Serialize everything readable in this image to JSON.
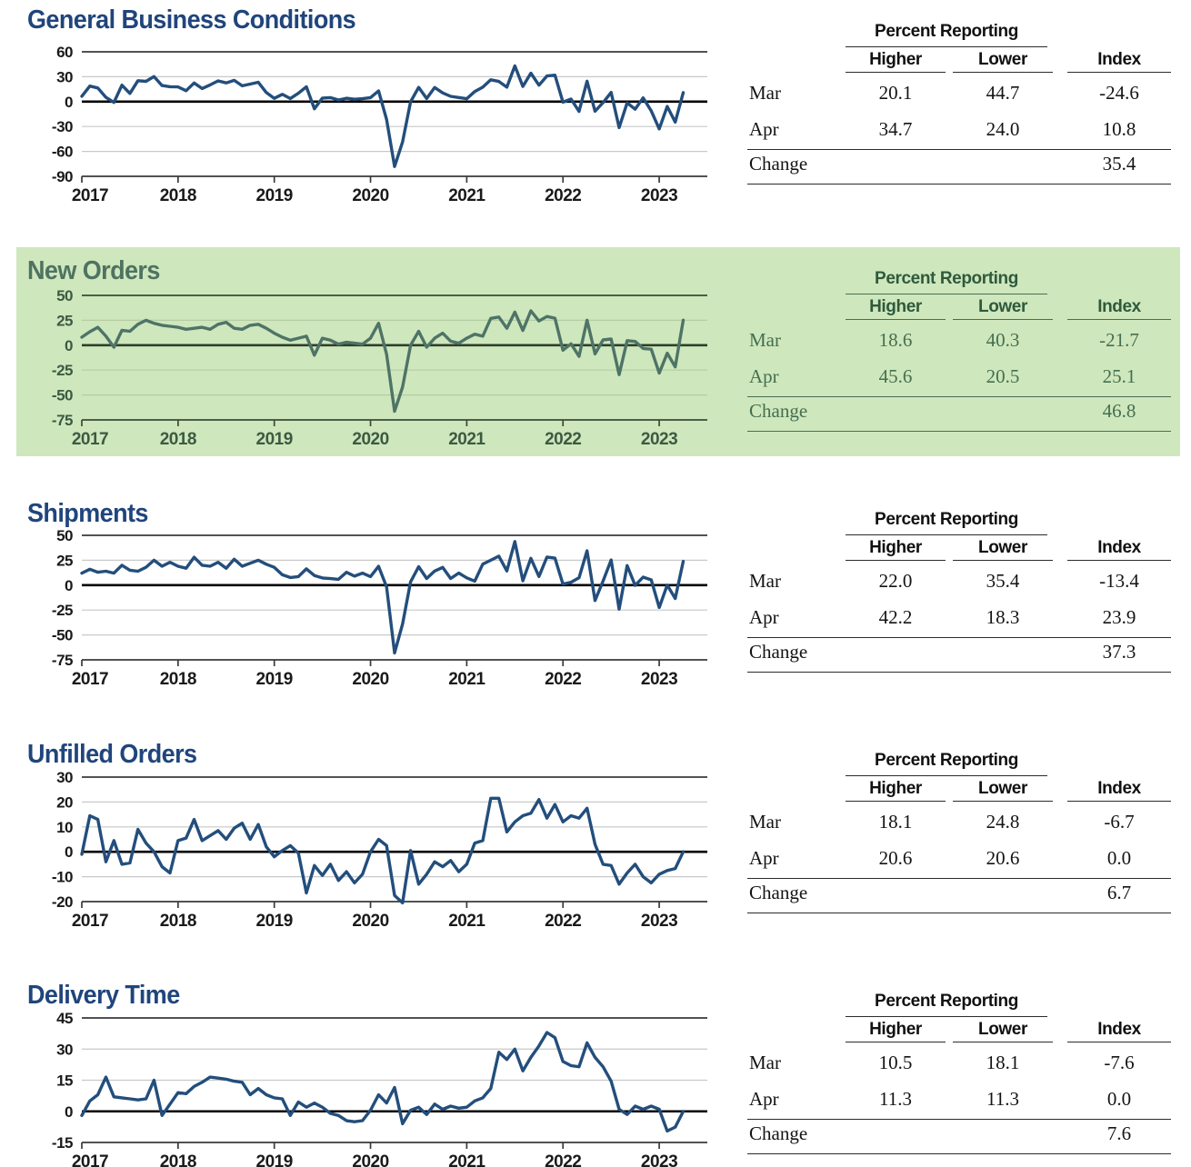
{
  "table_labels": {
    "group": "Percent Reporting",
    "higher": "Higher",
    "lower": "Lower",
    "index": "Index",
    "mar": "Mar",
    "apr": "Apr",
    "change": "Change"
  },
  "sections": [
    {
      "title": "General Business Conditions",
      "theme": "blue",
      "rows": {
        "mar": [
          "20.1",
          "44.7",
          "-24.6"
        ],
        "apr": [
          "34.7",
          "24.0",
          "10.8"
        ],
        "change": "35.4"
      }
    },
    {
      "title": "New Orders",
      "theme": "green",
      "rows": {
        "mar": [
          "18.6",
          "40.3",
          "-21.7"
        ],
        "apr": [
          "45.6",
          "20.5",
          "25.1"
        ],
        "change": "46.8"
      }
    },
    {
      "title": "Shipments",
      "theme": "blue",
      "rows": {
        "mar": [
          "22.0",
          "35.4",
          "-13.4"
        ],
        "apr": [
          "42.2",
          "18.3",
          "23.9"
        ],
        "change": "37.3"
      }
    },
    {
      "title": "Unfilled Orders",
      "theme": "blue",
      "rows": {
        "mar": [
          "18.1",
          "24.8",
          "-6.7"
        ],
        "apr": [
          "20.6",
          "20.6",
          "0.0"
        ],
        "change": "6.7"
      }
    },
    {
      "title": "Delivery Time",
      "theme": "blue",
      "rows": {
        "mar": [
          "10.5",
          "18.1",
          "-7.6"
        ],
        "apr": [
          "11.3",
          "11.3",
          "0.0"
        ],
        "change": "7.6"
      }
    }
  ],
  "themes": {
    "blue": {
      "line": "#234e7c",
      "strong": "#3a3a3a",
      "grid": "#c9c9c9",
      "zero": "#000000",
      "text": "#1a1a1a"
    },
    "green": {
      "line": "#4e7467",
      "strong": "#3c4b37",
      "grid": "#b6cda4",
      "zero": "#2f3e2c",
      "text": "#3c5a42"
    }
  },
  "highlight_band_color": "#cfe7bd",
  "chart_data": [
    {
      "id": 0,
      "type": "line",
      "title": "General Business Conditions",
      "theme": "blue",
      "x_axis_start": 2017,
      "x_axis_end": 2023.5,
      "x_monthly_start": "2017-01",
      "ylim": [
        -90,
        60
      ],
      "yticks": [
        60,
        30,
        0,
        -30,
        -60,
        -90
      ],
      "xticks": [
        2017,
        2018,
        2019,
        2020,
        2021,
        2022,
        2023
      ],
      "values": [
        6.5,
        18.7,
        16.4,
        5.2,
        -1.0,
        19.8,
        9.8,
        25.2,
        24.4,
        30.2,
        19.4,
        18.0,
        17.7,
        13.1,
        22.5,
        15.8,
        20.1,
        25.0,
        22.6,
        25.6,
        19.0,
        21.1,
        23.3,
        10.9,
        3.9,
        8.8,
        3.7,
        10.1,
        17.8,
        -8.6,
        4.3,
        4.8,
        2.0,
        4.0,
        2.9,
        3.5,
        4.8,
        12.9,
        -21.5,
        -78.2,
        -48.5,
        -0.2,
        17.2,
        3.7,
        17.0,
        10.5,
        6.3,
        4.9,
        3.5,
        12.1,
        17.4,
        26.3,
        24.3,
        17.4,
        43.0,
        18.3,
        34.3,
        19.8,
        30.9,
        31.9,
        -0.7,
        3.1,
        -11.8,
        24.6,
        -11.6,
        -1.2,
        11.1,
        -31.3,
        -1.5,
        -9.1,
        4.5,
        -11.2,
        -32.9,
        -5.8,
        -24.6,
        10.8
      ]
    },
    {
      "id": 1,
      "type": "line",
      "title": "New Orders",
      "theme": "green",
      "x_axis_start": 2017,
      "x_axis_end": 2023.5,
      "x_monthly_start": "2017-01",
      "ylim": [
        -75,
        50
      ],
      "yticks": [
        50,
        25,
        0,
        -25,
        -50,
        -75
      ],
      "xticks": [
        2017,
        2018,
        2019,
        2020,
        2021,
        2022,
        2023
      ],
      "values": [
        8,
        13.5,
        18,
        9,
        -2,
        15,
        14,
        21,
        25,
        22,
        20,
        19,
        18,
        16,
        17,
        18,
        16,
        21,
        23,
        17,
        16,
        20,
        21,
        17,
        12,
        8,
        5,
        7,
        9,
        -10,
        7,
        5,
        1,
        3,
        2,
        1,
        7,
        22,
        -9,
        -66.3,
        -42,
        0,
        14,
        -2,
        7,
        12,
        4,
        2,
        7,
        11,
        9,
        26.9,
        28.3,
        17,
        33.2,
        14.8,
        34.5,
        24.3,
        28.8,
        27.1,
        -5,
        1.4,
        -11.2,
        25.1,
        -8.8,
        5.3,
        6.2,
        -29.6,
        4.6,
        3.7,
        -3.3,
        -4,
        -28,
        -8,
        -21.7,
        25.1
      ]
    },
    {
      "id": 2,
      "type": "line",
      "title": "Shipments",
      "theme": "blue",
      "x_axis_start": 2017,
      "x_axis_end": 2023.5,
      "x_monthly_start": "2017-01",
      "ylim": [
        -75,
        50
      ],
      "yticks": [
        50,
        25,
        0,
        -25,
        -50,
        -75
      ],
      "xticks": [
        2017,
        2018,
        2019,
        2020,
        2021,
        2022,
        2023
      ],
      "values": [
        12,
        16,
        13,
        14,
        12,
        20,
        15,
        14,
        18,
        25,
        19,
        23,
        19,
        17,
        28,
        20,
        19,
        23,
        17,
        26,
        19,
        22,
        25,
        21,
        17.9,
        10.4,
        7.7,
        8.6,
        16.3,
        9.7,
        7.2,
        6.6,
        5.8,
        13.0,
        9.0,
        12.0,
        8.6,
        18.9,
        -1.7,
        -68.1,
        -39.0,
        3.3,
        18.5,
        6.7,
        14.1,
        17.8,
        6.7,
        12.1,
        7.3,
        4.0,
        21.1,
        25.0,
        29.1,
        14.2,
        43.8,
        4.4,
        26.9,
        8.7,
        28.2,
        27.1,
        1.0,
        2.9,
        7.4,
        34.5,
        -15.4,
        4.0,
        25.3,
        -24.1,
        19.6,
        -0.3,
        8.0,
        5.3,
        -22.4,
        0.1,
        -13.4,
        23.9
      ]
    },
    {
      "id": 3,
      "type": "line",
      "title": "Unfilled Orders",
      "theme": "blue",
      "x_axis_start": 2017,
      "x_axis_end": 2023.5,
      "x_monthly_start": "2017-01",
      "ylim": [
        -20,
        30
      ],
      "yticks": [
        30,
        20,
        10,
        0,
        -10,
        -20
      ],
      "xticks": [
        2017,
        2018,
        2019,
        2020,
        2021,
        2022,
        2023
      ],
      "values": [
        -1,
        14.5,
        13,
        -4,
        4.5,
        -5,
        -4.5,
        9,
        3.5,
        0,
        -6,
        -8.5,
        4.5,
        5.5,
        13,
        4.5,
        6.5,
        8.5,
        5,
        9.5,
        11.5,
        5,
        11,
        2,
        -2,
        0.5,
        2.5,
        -0.5,
        -16.5,
        -5.5,
        -9.5,
        -5,
        -11.5,
        -8,
        -12.5,
        -9,
        0,
        5,
        2.5,
        -17.5,
        -20.5,
        0.5,
        -13,
        -9,
        -4,
        -6,
        -3.5,
        -8,
        -5,
        3.5,
        4.5,
        21.5,
        21.5,
        8,
        12,
        14.5,
        15.5,
        21,
        13.5,
        19,
        12,
        14.5,
        13.5,
        17.5,
        3,
        -5,
        -5.5,
        -13,
        -8.5,
        -5,
        -10,
        -12.5,
        -9,
        -7.5,
        -6.7,
        0.0
      ]
    },
    {
      "id": 4,
      "type": "line",
      "title": "Delivery Time",
      "theme": "blue",
      "x_axis_start": 2017,
      "x_axis_end": 2023.5,
      "x_monthly_start": "2017-01",
      "ylim": [
        -15,
        45
      ],
      "yticks": [
        45,
        30,
        15,
        0,
        -15
      ],
      "xticks": [
        2017,
        2018,
        2019,
        2020,
        2021,
        2022,
        2023
      ],
      "values": [
        -2,
        5,
        8,
        16.5,
        7,
        6.5,
        6,
        5.5,
        6,
        15,
        -2,
        3.5,
        9,
        8.5,
        12,
        14,
        16.5,
        16,
        15.5,
        14.5,
        14,
        8,
        11,
        8,
        6.5,
        6,
        -2,
        4.5,
        2,
        4,
        2,
        -1,
        -2,
        -4.5,
        -5,
        -4.5,
        0.5,
        8,
        4,
        11.5,
        -6,
        0.5,
        2,
        -1.5,
        3.5,
        1,
        2.5,
        1.5,
        2,
        5,
        6.5,
        11,
        28.5,
        25,
        30,
        19.5,
        26,
        31.5,
        38,
        35.5,
        24,
        22,
        21.5,
        33,
        26,
        21.5,
        14.5,
        1,
        -1.5,
        2.5,
        1,
        2.5,
        1,
        -9.5,
        -7.6,
        0.0
      ]
    }
  ]
}
